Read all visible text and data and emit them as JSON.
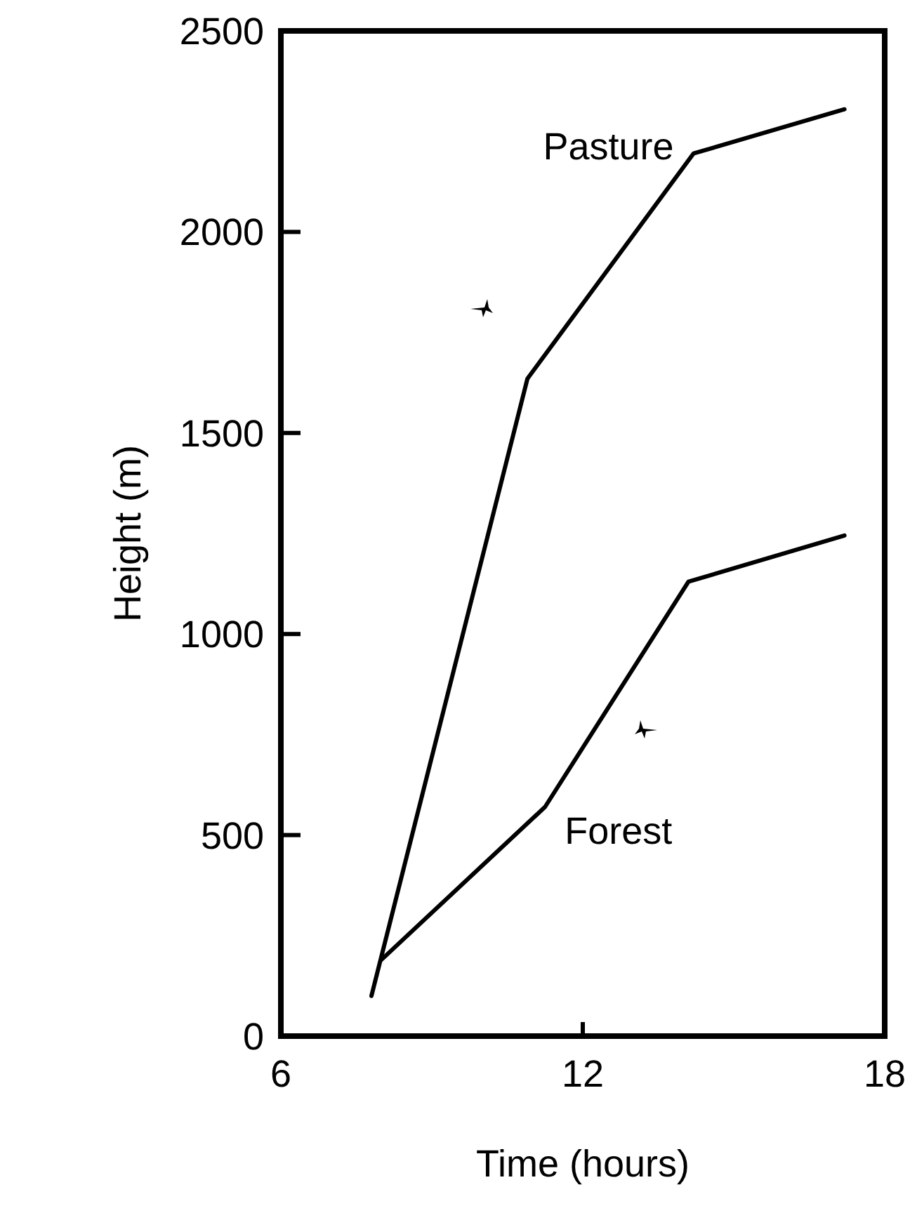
{
  "chart_data": {
    "type": "line",
    "xlabel": "Time (hours)",
    "ylabel": "Height (m)",
    "xlim": [
      6,
      18
    ],
    "xticks": [
      6,
      12,
      18
    ],
    "ylim": [
      0,
      2500
    ],
    "yticks": [
      0,
      500,
      1000,
      1500,
      2000,
      2500
    ],
    "marker": "none",
    "line_style": "solid",
    "series": [
      {
        "name": "Pasture",
        "color": "#000000",
        "x": [
          7.8,
          10.9,
          14.2,
          17.2
        ],
        "values": [
          100,
          1635,
          2195,
          2305
        ]
      },
      {
        "name": "Forest",
        "color": "#000000",
        "x": [
          8.0,
          11.25,
          14.1,
          17.2
        ],
        "values": [
          190,
          570,
          1130,
          1245
        ]
      }
    ]
  }
}
